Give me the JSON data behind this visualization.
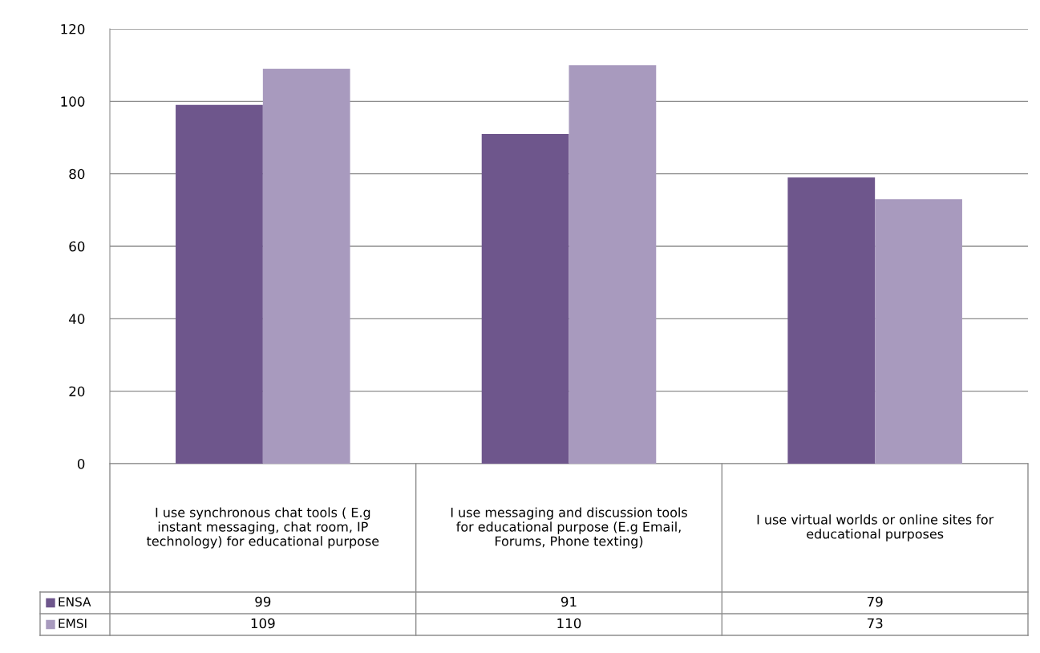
{
  "chart_data": {
    "type": "bar",
    "categories": [
      "I use synchronous chat tools ( E.g instant messaging, chat room, IP technology) for educational purpose",
      "I use messaging and discussion tools for educational purpose (E.g Email, Forums, Phone texting)",
      "I use virtual worlds or online sites for educational purposes"
    ],
    "series": [
      {
        "name": "ENSA",
        "color": "#6e568c",
        "values": [
          99,
          91,
          79
        ]
      },
      {
        "name": "EMSI",
        "color": "#a89abe",
        "values": [
          109,
          110,
          73
        ]
      }
    ],
    "ylim": [
      0,
      120
    ],
    "yticks": [
      0,
      20,
      40,
      60,
      80,
      100,
      120
    ],
    "grid": "y",
    "legend": "bottom",
    "data_labels": true
  }
}
